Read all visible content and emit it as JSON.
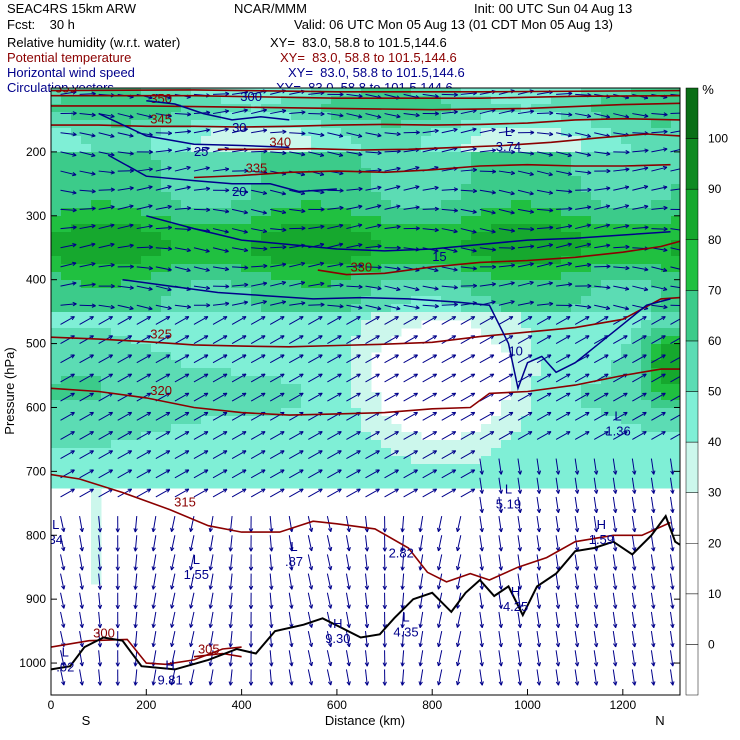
{
  "header": {
    "model": "SEAC4RS 15km ARW",
    "center": "NCAR/MMM",
    "init": "Init: 00 UTC Sun 04 Aug 13",
    "fcst": "Fcst:    30 h",
    "valid": "Valid: 06 UTC Mon 05 Aug 13 (01 CDT Mon 05 Aug 13)",
    "fields": [
      {
        "name": "Relative humidity (w.r.t. water)",
        "xy": "XY=  83.0, 58.8 to 101.5,144.6",
        "color": "#000000"
      },
      {
        "name": "Potential temperature",
        "xy": "XY=  83.0, 58.8 to 101.5,144.6",
        "color": "#8b0000"
      },
      {
        "name": "Horizontal wind speed",
        "xy": "XY=  83.0, 58.8 to 101.5,144.6",
        "color": "#00008b"
      },
      {
        "name": "Circulation vectors",
        "xy": "XY=  83.0, 58.8 to 101.5,144.6",
        "color": "#00008b"
      }
    ]
  },
  "chart_data": {
    "type": "heatmap",
    "title": "",
    "xlabel": "Distance (km)",
    "ylabel": "Pressure (hPa)",
    "xlim": [
      0,
      1320
    ],
    "ylim": [
      1050,
      100
    ],
    "x_ticks": [
      0,
      200,
      400,
      600,
      800,
      1000,
      1200
    ],
    "y_ticks": [
      200,
      300,
      400,
      500,
      600,
      700,
      800,
      900,
      1000
    ],
    "x_end_labels": {
      "left": "S",
      "right": "N"
    },
    "colorbar": {
      "unit": "%",
      "levels": [
        -10,
        0,
        10,
        20,
        30,
        40,
        50,
        60,
        70,
        80,
        90,
        100,
        110
      ],
      "tick_labels": [
        0,
        10,
        20,
        30,
        40,
        50,
        60,
        70,
        80,
        90,
        100
      ],
      "colors": [
        "#ffffff",
        "#ffffff",
        "#ffffff",
        "#ffffff",
        "#ccf7ec",
        "#7fefd6",
        "#5cdcb4",
        "#3ccb8a",
        "#20c040",
        "#16a82e",
        "#108a22",
        "#0a6e16"
      ]
    },
    "theta_contours": [
      {
        "label": "325",
        "points": [
          [
            0,
            490
          ],
          [
            100,
            493
          ],
          [
            200,
            497
          ],
          [
            300,
            502
          ],
          [
            400,
            504
          ],
          [
            500,
            505
          ],
          [
            600,
            503
          ],
          [
            700,
            501
          ],
          [
            800,
            498
          ],
          [
            900,
            489
          ],
          [
            1000,
            482
          ],
          [
            1100,
            475
          ],
          [
            1200,
            462
          ],
          [
            1280,
            430
          ],
          [
            1320,
            428
          ]
        ]
      },
      {
        "label": "320",
        "points": [
          [
            0,
            570
          ],
          [
            100,
            575
          ],
          [
            200,
            585
          ],
          [
            300,
            600
          ],
          [
            400,
            608
          ],
          [
            500,
            612
          ],
          [
            600,
            610
          ],
          [
            700,
            608
          ],
          [
            800,
            602
          ],
          [
            880,
            600
          ],
          [
            920,
            578
          ],
          [
            1000,
            575
          ],
          [
            1100,
            565
          ],
          [
            1200,
            550
          ],
          [
            1280,
            540
          ],
          [
            1320,
            540
          ]
        ]
      },
      {
        "label": "315",
        "points": [
          [
            0,
            705
          ],
          [
            60,
            712
          ],
          [
            150,
            733
          ],
          [
            250,
            760
          ],
          [
            330,
            785
          ],
          [
            400,
            795
          ],
          [
            480,
            795
          ],
          [
            550,
            778
          ],
          [
            600,
            782
          ],
          [
            680,
            790
          ],
          [
            750,
            820
          ],
          [
            790,
            858
          ],
          [
            830,
            873
          ],
          [
            880,
            860
          ],
          [
            920,
            870
          ],
          [
            980,
            850
          ],
          [
            1040,
            835
          ],
          [
            1100,
            810
          ],
          [
            1180,
            800
          ],
          [
            1240,
            800
          ],
          [
            1300,
            780
          ]
        ]
      },
      {
        "label": "330",
        "points": [
          [
            560,
            385
          ],
          [
            620,
            392
          ],
          [
            700,
            390
          ],
          [
            800,
            380
          ],
          [
            900,
            373
          ],
          [
            1000,
            370
          ],
          [
            1100,
            365
          ],
          [
            1200,
            357
          ],
          [
            1280,
            348
          ],
          [
            1320,
            340
          ]
        ]
      },
      {
        "label": "335",
        "points": [
          [
            300,
            240
          ],
          [
            400,
            237
          ],
          [
            500,
            232
          ],
          [
            600,
            230
          ],
          [
            700,
            232
          ],
          [
            800,
            228
          ],
          [
            900,
            222
          ],
          [
            1000,
            220
          ],
          [
            1100,
            222
          ],
          [
            1200,
            222
          ],
          [
            1300,
            220
          ]
        ]
      },
      {
        "label": "340",
        "points": [
          [
            350,
            196
          ],
          [
            450,
            196
          ],
          [
            550,
            195
          ],
          [
            650,
            197
          ],
          [
            750,
            196
          ],
          [
            850,
            193
          ],
          [
            950,
            190
          ],
          [
            1050,
            185
          ],
          [
            1150,
            178
          ],
          [
            1250,
            172
          ],
          [
            1320,
            175
          ]
        ]
      },
      {
        "label": "345",
        "points": [
          [
            0,
            158
          ],
          [
            100,
            158
          ],
          [
            200,
            160
          ],
          [
            300,
            160
          ],
          [
            400,
            161
          ],
          [
            500,
            160
          ],
          [
            600,
            158
          ],
          [
            700,
            157
          ],
          [
            800,
            158
          ],
          [
            900,
            157
          ],
          [
            1000,
            155
          ],
          [
            1100,
            150
          ],
          [
            1200,
            148
          ],
          [
            1320,
            150
          ]
        ]
      },
      {
        "label": "350",
        "points": [
          [
            0,
            128
          ],
          [
            200,
            128
          ],
          [
            400,
            130
          ],
          [
            600,
            132
          ],
          [
            800,
            134
          ],
          [
            1000,
            132
          ],
          [
            1200,
            126
          ],
          [
            1320,
            124
          ]
        ]
      },
      {
        "label": "355",
        "points": [
          [
            0,
            112
          ],
          [
            300,
            112
          ],
          [
            600,
            116
          ],
          [
            900,
            116
          ],
          [
            1100,
            113
          ],
          [
            1320,
            112
          ]
        ]
      },
      {
        "label": "360",
        "points": [
          [
            0,
            104
          ],
          [
            300,
            103
          ],
          [
            600,
            106
          ],
          [
            900,
            106
          ],
          [
            1320,
            104
          ]
        ]
      },
      {
        "label": "300",
        "points": [
          [
            0,
            975
          ],
          [
            80,
            965
          ],
          [
            160,
            963
          ],
          [
            200,
            1000
          ],
          [
            240,
            1002
          ],
          [
            300,
            995
          ],
          [
            360,
            978
          ],
          [
            400,
            975
          ]
        ]
      },
      {
        "label": "305",
        "points": [
          [
            300,
            990
          ],
          [
            360,
            985
          ],
          [
            400,
            990
          ]
        ]
      }
    ],
    "wind_contours": [
      {
        "label": "30",
        "points": [
          [
            200,
            120
          ],
          [
            260,
            125
          ],
          [
            320,
            140
          ],
          [
            380,
            150
          ],
          [
            440,
            145
          ],
          [
            500,
            150
          ]
        ]
      },
      {
        "label": "25",
        "points": [
          [
            100,
            140
          ],
          [
            200,
            175
          ],
          [
            300,
            188
          ],
          [
            400,
            190
          ],
          [
            500,
            193
          ]
        ]
      },
      {
        "label": "20",
        "points": [
          [
            120,
            205
          ],
          [
            200,
            238
          ],
          [
            300,
            245
          ],
          [
            380,
            250
          ],
          [
            460,
            250
          ],
          [
            520,
            262
          ],
          [
            600,
            258
          ]
        ]
      },
      {
        "label": "15",
        "points": [
          [
            200,
            300
          ],
          [
            300,
            320
          ],
          [
            400,
            338
          ],
          [
            500,
            345
          ],
          [
            600,
            352
          ],
          [
            700,
            355
          ],
          [
            800,
            352
          ],
          [
            900,
            345
          ],
          [
            1000,
            338
          ],
          [
            1100,
            335
          ],
          [
            1200,
            330
          ],
          [
            1300,
            325
          ]
        ]
      },
      {
        "label": "10",
        "points": [
          [
            150,
            400
          ],
          [
            250,
            410
          ],
          [
            350,
            420
          ],
          [
            450,
            425
          ],
          [
            550,
            430
          ],
          [
            650,
            428
          ],
          [
            750,
            430
          ],
          [
            850,
            435
          ],
          [
            920,
            440
          ],
          [
            960,
            500
          ],
          [
            980,
            570
          ],
          [
            1000,
            530
          ],
          [
            1030,
            520
          ],
          [
            1060,
            545
          ],
          [
            1100,
            530
          ],
          [
            1150,
            500
          ],
          [
            1200,
            470
          ],
          [
            1250,
            440
          ],
          [
            1300,
            430
          ]
        ]
      }
    ],
    "annotations": [
      {
        "text": "L",
        "sub": "34",
        "x": 10,
        "p": 790
      },
      {
        "text": "L",
        "sub": "1.55",
        "x": 305,
        "p": 845
      },
      {
        "text": "L",
        "sub": ".87",
        "x": 510,
        "p": 825
      },
      {
        "text": "2.82",
        "sub": "",
        "x": 735,
        "p": 835
      },
      {
        "text": "H",
        "sub": "9.30",
        "x": 602,
        "p": 945
      },
      {
        "text": "L",
        "sub": "4.35",
        "x": 745,
        "p": 935
      },
      {
        "text": "L",
        "sub": "5.19",
        "x": 960,
        "p": 735
      },
      {
        "text": "H",
        "sub": "4.25",
        "x": 975,
        "p": 895
      },
      {
        "text": "H",
        "sub": "1.59",
        "x": 1155,
        "p": 790
      },
      {
        "text": "L",
        "sub": "1.36",
        "x": 1190,
        "p": 620
      },
      {
        "text": "H",
        "sub": "9.81",
        "x": 250,
        "p": 1010
      },
      {
        "text": "L",
        "sub": ".02",
        "x": 30,
        "p": 990
      },
      {
        "text": "L",
        "sub": "3.74",
        "x": 960,
        "p": 175
      },
      {
        "text": "300",
        "sub": "",
        "x": 420,
        "p": 120
      }
    ],
    "terrain": [
      [
        0,
        1010
      ],
      [
        40,
        1005
      ],
      [
        70,
        975
      ],
      [
        110,
        960
      ],
      [
        150,
        965
      ],
      [
        190,
        1005
      ],
      [
        260,
        1010
      ],
      [
        330,
        995
      ],
      [
        390,
        978
      ],
      [
        430,
        985
      ],
      [
        470,
        950
      ],
      [
        530,
        940
      ],
      [
        570,
        930
      ],
      [
        610,
        945
      ],
      [
        650,
        960
      ],
      [
        690,
        955
      ],
      [
        720,
        930
      ],
      [
        760,
        900
      ],
      [
        800,
        890
      ],
      [
        840,
        920
      ],
      [
        870,
        890
      ],
      [
        900,
        870
      ],
      [
        930,
        895
      ],
      [
        960,
        880
      ],
      [
        990,
        925
      ],
      [
        1020,
        880
      ],
      [
        1060,
        860
      ],
      [
        1100,
        825
      ],
      [
        1140,
        820
      ],
      [
        1180,
        810
      ],
      [
        1220,
        830
      ],
      [
        1260,
        800
      ],
      [
        1290,
        770
      ],
      [
        1310,
        810
      ],
      [
        1320,
        815
      ]
    ]
  }
}
